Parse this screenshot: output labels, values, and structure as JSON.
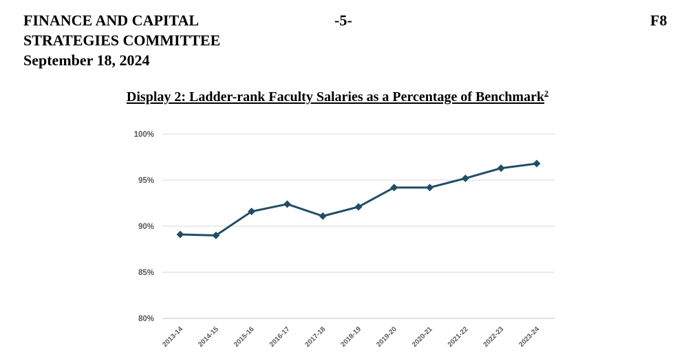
{
  "header": {
    "left_lines": [
      "FINANCE AND CAPITAL",
      "STRATEGIES COMMITTEE",
      "September 18, 2024"
    ],
    "page_number": "-5-",
    "item_code": "F8"
  },
  "display_title": "Display 2: Ladder-rank Faculty Salaries as a Percentage of Benchmark",
  "footnote_ref": "2",
  "colors": {
    "series": "#1f4e66"
  },
  "chart_data": {
    "type": "line",
    "title": "",
    "xlabel": "",
    "ylabel": "",
    "categories": [
      "2013-14",
      "2014-15",
      "2015-16",
      "2016-17",
      "2017-18",
      "2018-19",
      "2019-20",
      "2020-21",
      "2021-22",
      "2022-23",
      "2023-24"
    ],
    "series": [
      {
        "values": [
          89.1,
          89.0,
          91.6,
          92.4,
          91.1,
          92.1,
          94.2,
          94.2,
          95.2,
          96.3,
          96.8
        ]
      }
    ],
    "ylim": [
      80,
      100
    ],
    "yticks": [
      80,
      85,
      90,
      95,
      100
    ],
    "ytick_labels": [
      "80%",
      "85%",
      "90%",
      "95%",
      "100%"
    ],
    "marker": "diamond",
    "grid": true,
    "legend": "none"
  }
}
